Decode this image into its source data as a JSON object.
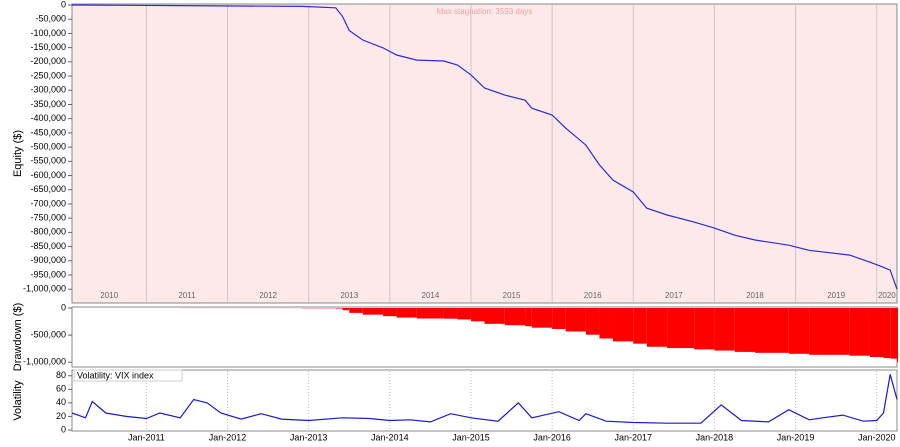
{
  "chart_data": [
    {
      "type": "line",
      "ylabel": "Equity ($)",
      "annotation": "Max stagnation: 3593 days",
      "color": "#2a2adf",
      "background": "#fde9ea",
      "xlim": [
        "2010-02",
        "2020-04"
      ],
      "ylim": [
        -1045000,
        0
      ],
      "yticks": [
        0,
        {
          "value": -50000,
          "label": "-50,000"
        },
        {
          "value": -100000,
          "label": "-100,000"
        },
        {
          "value": -150000,
          "label": "-150,000"
        },
        {
          "value": -200000,
          "label": "-200,000"
        },
        {
          "value": -250000,
          "label": "-250,000"
        },
        {
          "value": -300000,
          "label": "-300,000"
        },
        {
          "value": -350000,
          "label": "-350,000"
        },
        {
          "value": -400000,
          "label": "-400,000"
        },
        {
          "value": -450000,
          "label": "-450,000"
        },
        {
          "value": -500000,
          "label": "-500,000"
        },
        {
          "value": -550000,
          "label": "-550,000"
        },
        {
          "value": -600000,
          "label": "-600,000"
        },
        {
          "value": -650000,
          "label": "-650,000"
        },
        {
          "value": -700000,
          "label": "-700,000"
        },
        {
          "value": -750000,
          "label": "-750,000"
        },
        {
          "value": -800000,
          "label": "-800,000"
        },
        {
          "value": -850000,
          "label": "-850,000"
        },
        {
          "value": -900000,
          "label": "-900,000"
        },
        {
          "value": -950000,
          "label": "-950,000"
        },
        {
          "value": -1000000,
          "label": "-1,000,000"
        }
      ],
      "year_labels": [
        "2010",
        "2011",
        "2012",
        "2013",
        "2014",
        "2015",
        "2016",
        "2017",
        "2018",
        "2019",
        "2020"
      ],
      "x": [
        "2010-02",
        "2011-06",
        "2012-12",
        "2013-05",
        "2013-06",
        "2013-07",
        "2013-09",
        "2013-12",
        "2014-02",
        "2014-05",
        "2014-09",
        "2014-11",
        "2015-01",
        "2015-03",
        "2015-06",
        "2015-09",
        "2015-10",
        "2016-01",
        "2016-03",
        "2016-06",
        "2016-08",
        "2016-10",
        "2017-01",
        "2017-03",
        "2017-06",
        "2017-10",
        "2018-01",
        "2018-04",
        "2018-07",
        "2018-12",
        "2019-03",
        "2019-09",
        "2019-12",
        "2020-02",
        "2020-03",
        "2020-04"
      ],
      "values": [
        0,
        -2000,
        -5000,
        -10000,
        -40000,
        -90000,
        -123000,
        -151000,
        -176000,
        -194000,
        -197000,
        -211000,
        -246000,
        -292000,
        -317000,
        -335000,
        -363000,
        -387000,
        -433000,
        -493000,
        -563000,
        -616000,
        -658000,
        -715000,
        -739000,
        -764000,
        -785000,
        -810000,
        -827000,
        -845000,
        -863000,
        -880000,
        -905000,
        -923000,
        -933000,
        -1000000
      ]
    },
    {
      "type": "bar",
      "ylabel": "Drawdown ($)",
      "color": "#ff0000",
      "xlim": [
        "2010-02",
        "2020-04"
      ],
      "ylim": [
        -1070000,
        0
      ],
      "yticks": [
        0,
        {
          "value": -500000,
          "label": "-500,000"
        },
        {
          "value": -1000000,
          "label": "-1,000,000"
        }
      ],
      "x": [
        "2010-02",
        "2011-06",
        "2012-12",
        "2013-05",
        "2013-06",
        "2013-07",
        "2013-09",
        "2013-12",
        "2014-02",
        "2014-05",
        "2014-09",
        "2014-11",
        "2015-01",
        "2015-03",
        "2015-06",
        "2015-09",
        "2015-10",
        "2016-01",
        "2016-03",
        "2016-06",
        "2016-08",
        "2016-10",
        "2017-01",
        "2017-03",
        "2017-06",
        "2017-10",
        "2018-01",
        "2018-04",
        "2018-07",
        "2018-12",
        "2019-03",
        "2019-09",
        "2019-12",
        "2020-02",
        "2020-03",
        "2020-04"
      ],
      "values": [
        0,
        -2000,
        -5000,
        -10000,
        -40000,
        -90000,
        -123000,
        -151000,
        -176000,
        -194000,
        -197000,
        -211000,
        -246000,
        -292000,
        -317000,
        -335000,
        -363000,
        -387000,
        -433000,
        -493000,
        -563000,
        -616000,
        -658000,
        -715000,
        -739000,
        -764000,
        -785000,
        -810000,
        -827000,
        -845000,
        -863000,
        -880000,
        -905000,
        -923000,
        -933000,
        -1000000
      ]
    },
    {
      "type": "line",
      "ylabel": "Volatility",
      "xlim": [
        "2010-02",
        "2020-04"
      ],
      "ylim": [
        0,
        87
      ],
      "yticks": [
        0,
        20,
        40,
        60,
        80
      ],
      "xticks": [
        {
          "value": "2011-01",
          "label": "Jan-2011"
        },
        {
          "value": "2012-01",
          "label": "Jan-2012"
        },
        {
          "value": "2013-01",
          "label": "Jan-2013"
        },
        {
          "value": "2014-01",
          "label": "Jan-2014"
        },
        {
          "value": "2015-01",
          "label": "Jan-2015"
        },
        {
          "value": "2016-01",
          "label": "Jan-2016"
        },
        {
          "value": "2017-01",
          "label": "Jan-2017"
        },
        {
          "value": "2018-01",
          "label": "Jan-2018"
        },
        {
          "value": "2019-01",
          "label": "Jan-2019"
        },
        {
          "value": "2020-01",
          "label": "Jan-2020"
        }
      ],
      "x": [
        "2010-02",
        "2010-04",
        "2010-05",
        "2010-07",
        "2010-10",
        "2011-01",
        "2011-03",
        "2011-06",
        "2011-08",
        "2011-10",
        "2011-12",
        "2012-03",
        "2012-06",
        "2012-09",
        "2013-01",
        "2013-06",
        "2013-10",
        "2014-01",
        "2014-04",
        "2014-07",
        "2014-10",
        "2015-01",
        "2015-05",
        "2015-08",
        "2015-10",
        "2016-02",
        "2016-05",
        "2016-06",
        "2016-09",
        "2017-01",
        "2017-06",
        "2017-11",
        "2018-02",
        "2018-05",
        "2018-09",
        "2018-12",
        "2019-03",
        "2019-05",
        "2019-08",
        "2019-11",
        "2020-01",
        "2020-02",
        "2020-03",
        "2020-04"
      ],
      "series": [
        {
          "name": "Volatility: VIX index",
          "color": "#1a1acc",
          "values": [
            25,
            18,
            42,
            25,
            20,
            17,
            25,
            18,
            45,
            40,
            25,
            16,
            24,
            16,
            14,
            18,
            17,
            14,
            15,
            12,
            24,
            18,
            13,
            40,
            18,
            27,
            14,
            24,
            13,
            11,
            10,
            10,
            37,
            14,
            12,
            30,
            15,
            18,
            22,
            13,
            14,
            25,
            82,
            45
          ]
        }
      ]
    }
  ]
}
